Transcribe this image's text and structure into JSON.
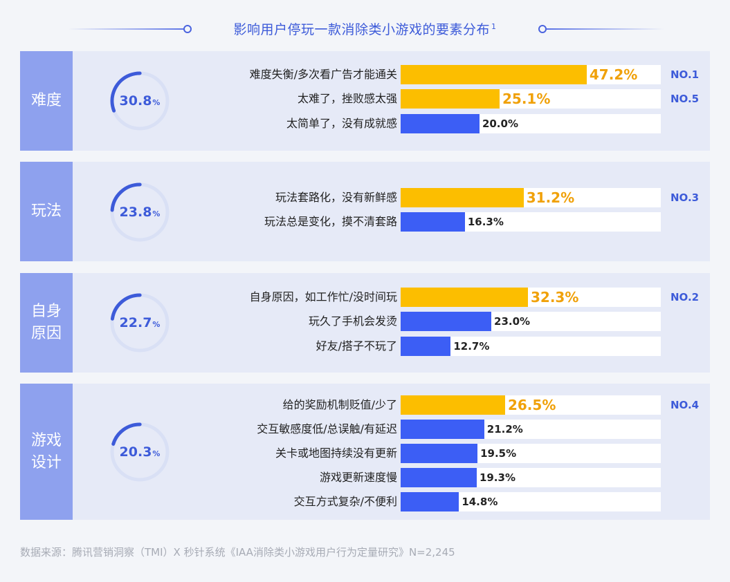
{
  "title": "影响用户停玩一款消除类小游戏的要素分布",
  "title_sup": "1",
  "colors": {
    "top_bar": "#fcbe00",
    "top_value_text": "#f0a10a",
    "other_bar": "#3c5ef5",
    "ring": "#3d5bd9",
    "ring_track": "#d9e0f5"
  },
  "chart_data": {
    "type": "bar",
    "orientation": "horizontal",
    "value_unit": "%",
    "xlim": [
      0,
      66
    ],
    "groups": [
      {
        "name": "难度",
        "share": 30.8,
        "share_label": "30.8",
        "items": [
          {
            "label": "难度失衡/多次看广告才能通关",
            "value": 47.2,
            "display": "47.2%",
            "highlight": true,
            "rank": "NO.1"
          },
          {
            "label": "太难了，挫败感太强",
            "value": 25.1,
            "display": "25.1%",
            "highlight": true,
            "rank": "NO.5"
          },
          {
            "label": "太简单了，没有成就感",
            "value": 20.0,
            "display": "20.0%",
            "highlight": false,
            "rank": ""
          }
        ]
      },
      {
        "name": "玩法",
        "share": 23.8,
        "share_label": "23.8",
        "items": [
          {
            "label": "玩法套路化，没有新鲜感",
            "value": 31.2,
            "display": "31.2%",
            "highlight": true,
            "rank": "NO.3"
          },
          {
            "label": "玩法总是变化，摸不清套路",
            "value": 16.3,
            "display": "16.3%",
            "highlight": false,
            "rank": ""
          }
        ]
      },
      {
        "name": "自身\n原因",
        "share": 22.7,
        "share_label": "22.7",
        "items": [
          {
            "label": "自身原因，如工作忙/没时间玩",
            "value": 32.3,
            "display": "32.3%",
            "highlight": true,
            "rank": "NO.2"
          },
          {
            "label": "玩久了手机会发烫",
            "value": 23.0,
            "display": "23.0%",
            "highlight": false,
            "rank": ""
          },
          {
            "label": "好友/搭子不玩了",
            "value": 12.7,
            "display": "12.7%",
            "highlight": false,
            "rank": ""
          }
        ]
      },
      {
        "name": "游戏\n设计",
        "share": 20.3,
        "share_label": "20.3",
        "items": [
          {
            "label": "给的奖励机制贬值/少了",
            "value": 26.5,
            "display": "26.5%",
            "highlight": true,
            "rank": "NO.4"
          },
          {
            "label": "交互敏感度低/总误触/有延迟",
            "value": 21.2,
            "display": "21.2%",
            "highlight": false,
            "rank": ""
          },
          {
            "label": "关卡或地图持续没有更新",
            "value": 19.5,
            "display": "19.5%",
            "highlight": false,
            "rank": ""
          },
          {
            "label": "游戏更新速度慢",
            "value": 19.3,
            "display": "19.3%",
            "highlight": false,
            "rank": ""
          },
          {
            "label": "交互方式复杂/不便利",
            "value": 14.8,
            "display": "14.8%",
            "highlight": false,
            "rank": ""
          }
        ]
      }
    ]
  },
  "source": "数据来源：腾讯营销洞察（TMI）X 秒针系统《IAA消除类小游戏用户行为定量研究》N=2,245"
}
